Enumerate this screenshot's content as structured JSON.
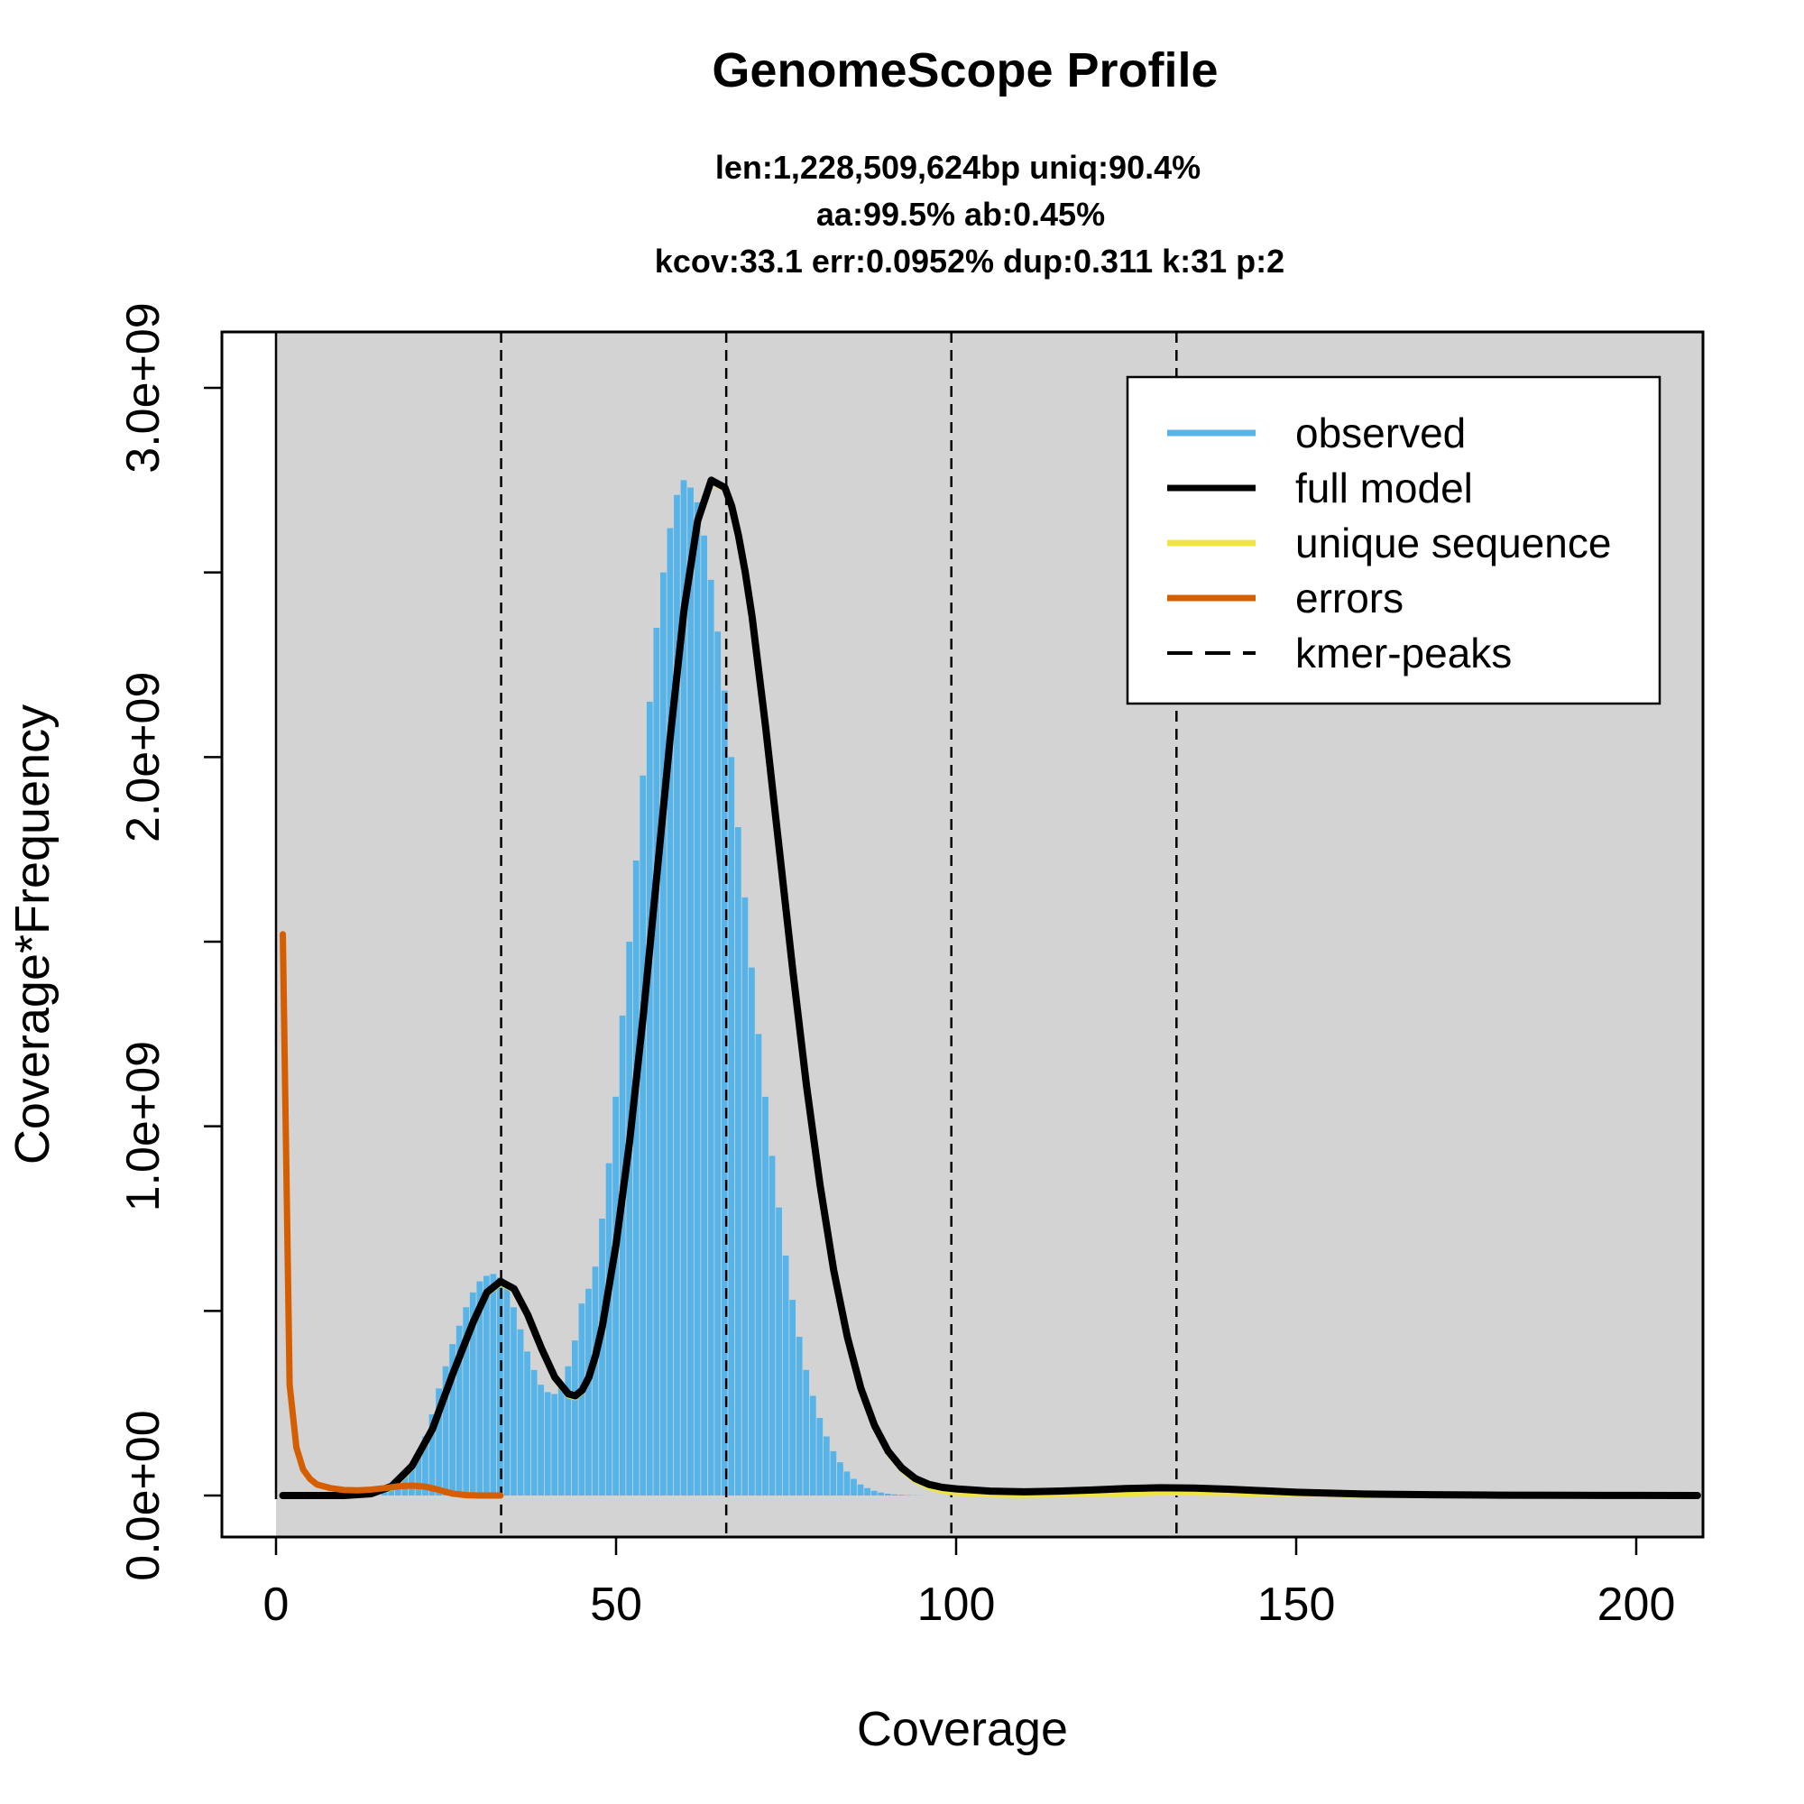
{
  "chart_data": {
    "type": "bar",
    "title": "GenomeScope Profile",
    "subtitle_lines": [
      "len:1,228,509,624bp uniq:90.4%",
      "aa:99.5% ab:0.45%",
      "kcov:33.1 err:0.0952%  dup:0.311  k:31 p:2"
    ],
    "xlabel": "Coverage",
    "ylabel": "Coverage*Frequency",
    "xlim": [
      -8,
      209
    ],
    "ylim": [
      -120000000,
      3150000000
    ],
    "x_ticks": [
      0,
      50,
      100,
      150,
      200
    ],
    "x_tick_labels": [
      "0",
      "50",
      "100",
      "150",
      "200"
    ],
    "y_ticks": [
      0,
      500000000,
      1000000000,
      1500000000,
      2000000000,
      2500000000,
      3000000000
    ],
    "y_tick_labels": [
      "0.0e+00",
      "",
      "1.0e+09",
      "",
      "2.0e+09",
      "",
      "3.0e+09"
    ],
    "grid": false,
    "background": "#d3d3d3",
    "kmer_peaks": [
      33.1,
      66.2,
      99.3,
      132.4
    ],
    "observed": {
      "name": "observed",
      "color": "#56b4e9",
      "x": [
        16,
        17,
        18,
        19,
        20,
        21,
        22,
        23,
        24,
        25,
        26,
        27,
        28,
        29,
        30,
        31,
        32,
        33,
        34,
        35,
        36,
        37,
        38,
        39,
        40,
        41,
        42,
        43,
        44,
        45,
        46,
        47,
        48,
        49,
        50,
        51,
        52,
        53,
        54,
        55,
        56,
        57,
        58,
        59,
        60,
        61,
        62,
        63,
        64,
        65,
        66,
        67,
        68,
        69,
        70,
        71,
        72,
        73,
        74,
        75,
        76,
        77,
        78,
        79,
        80,
        81,
        82,
        83,
        84,
        85,
        86,
        87,
        88,
        89,
        90,
        91,
        92,
        93,
        94,
        95,
        96,
        97,
        98,
        99,
        100
      ],
      "values": [
        10000000,
        20000000,
        35000000,
        55000000,
        80000000,
        110000000,
        160000000,
        220000000,
        290000000,
        350000000,
        410000000,
        460000000,
        510000000,
        550000000,
        580000000,
        595000000,
        600000000,
        590000000,
        560000000,
        510000000,
        450000000,
        390000000,
        340000000,
        300000000,
        280000000,
        275000000,
        300000000,
        350000000,
        420000000,
        520000000,
        560000000,
        620000000,
        750000000,
        900000000,
        1080000000,
        1300000000,
        1500000000,
        1720000000,
        1950000000,
        2150000000,
        2350000000,
        2500000000,
        2620000000,
        2710000000,
        2750000000,
        2730000000,
        2690000000,
        2600000000,
        2480000000,
        2340000000,
        2180000000,
        2000000000,
        1810000000,
        1620000000,
        1430000000,
        1250000000,
        1080000000,
        920000000,
        780000000,
        650000000,
        530000000,
        430000000,
        340000000,
        270000000,
        210000000,
        160000000,
        120000000,
        90000000,
        65000000,
        45000000,
        30000000,
        20000000,
        13000000,
        8000000,
        5000000,
        3000000,
        2000000,
        1000000,
        500000,
        200000,
        100000,
        0,
        0,
        0,
        0
      ]
    },
    "series": [
      {
        "name": "full model",
        "color": "#000000",
        "x": [
          1,
          5,
          10,
          14,
          17,
          20,
          23,
          26,
          29,
          31,
          33,
          35,
          37,
          39,
          41,
          43,
          44,
          45,
          46,
          47,
          48,
          50,
          52,
          54,
          56,
          58,
          60,
          62,
          64,
          66,
          67,
          68,
          69,
          70,
          72,
          74,
          76,
          78,
          80,
          82,
          84,
          86,
          88,
          90,
          92,
          94,
          96,
          98,
          100,
          105,
          110,
          115,
          120,
          125,
          130,
          135,
          140,
          145,
          150,
          160,
          170,
          180,
          190,
          200,
          209
        ],
        "values": [
          0,
          0,
          0,
          5000000,
          25000000,
          80000000,
          180000000,
          330000000,
          470000000,
          550000000,
          580000000,
          560000000,
          490000000,
          400000000,
          320000000,
          275000000,
          270000000,
          285000000,
          320000000,
          380000000,
          460000000,
          680000000,
          960000000,
          1300000000,
          1680000000,
          2060000000,
          2400000000,
          2640000000,
          2750000000,
          2730000000,
          2680000000,
          2600000000,
          2500000000,
          2380000000,
          2080000000,
          1750000000,
          1420000000,
          1110000000,
          840000000,
          610000000,
          430000000,
          290000000,
          190000000,
          120000000,
          75000000,
          46000000,
          30000000,
          22000000,
          18000000,
          12000000,
          10000000,
          12000000,
          15000000,
          19000000,
          21000000,
          20000000,
          17000000,
          13000000,
          9000000,
          4000000,
          2000000,
          1000000,
          500000,
          200000,
          0
        ]
      },
      {
        "name": "unique sequence",
        "color": "#f0e442",
        "x": [
          1,
          10,
          17,
          20,
          23,
          26,
          29,
          31,
          33,
          35,
          37,
          39,
          41,
          43,
          44,
          45,
          46,
          47,
          48,
          50,
          52,
          54,
          56,
          58,
          60,
          62,
          64,
          66,
          67,
          68,
          69,
          70,
          72,
          74,
          76,
          78,
          80,
          82,
          84,
          86,
          88,
          90,
          92,
          94,
          96,
          98,
          100,
          105,
          110,
          115,
          120,
          125,
          130,
          135,
          140,
          145,
          150,
          160,
          170,
          180,
          200,
          209
        ],
        "values": [
          0,
          0,
          20000000,
          75000000,
          175000000,
          325000000,
          465000000,
          545000000,
          575000000,
          555000000,
          485000000,
          395000000,
          315000000,
          270000000,
          265000000,
          280000000,
          315000000,
          375000000,
          455000000,
          675000000,
          955000000,
          1295000000,
          1675000000,
          2055000000,
          2395000000,
          2635000000,
          2745000000,
          2725000000,
          2675000000,
          2595000000,
          2495000000,
          2375000000,
          2075000000,
          1745000000,
          1415000000,
          1105000000,
          835000000,
          605000000,
          425000000,
          285000000,
          185000000,
          115000000,
          70000000,
          40000000,
          22000000,
          12000000,
          6000000,
          2000000,
          1000000,
          2000000,
          3000000,
          5000000,
          7000000,
          7000000,
          6000000,
          4000000,
          3000000,
          1000000,
          500000,
          0,
          0,
          0
        ]
      },
      {
        "name": "errors",
        "color": "#d55e00",
        "x": [
          1,
          2,
          3,
          4,
          5,
          6,
          8,
          10,
          12,
          14,
          16,
          18,
          20,
          22,
          24,
          26,
          28,
          30,
          33
        ],
        "values": [
          1520000000,
          300000000,
          130000000,
          70000000,
          45000000,
          30000000,
          20000000,
          15000000,
          14000000,
          16000000,
          20000000,
          25000000,
          27000000,
          24000000,
          15000000,
          5000000,
          1000000,
          0,
          0
        ]
      }
    ],
    "legend": {
      "position": "top-right",
      "entries": [
        {
          "label": "observed",
          "color": "#56b4e9",
          "style": "solid"
        },
        {
          "label": "full model",
          "color": "#000000",
          "style": "solid"
        },
        {
          "label": "unique sequence",
          "color": "#f0e442",
          "style": "solid"
        },
        {
          "label": "errors",
          "color": "#d55e00",
          "style": "solid"
        },
        {
          "label": "kmer-peaks",
          "color": "#000000",
          "style": "dashed"
        }
      ]
    }
  }
}
